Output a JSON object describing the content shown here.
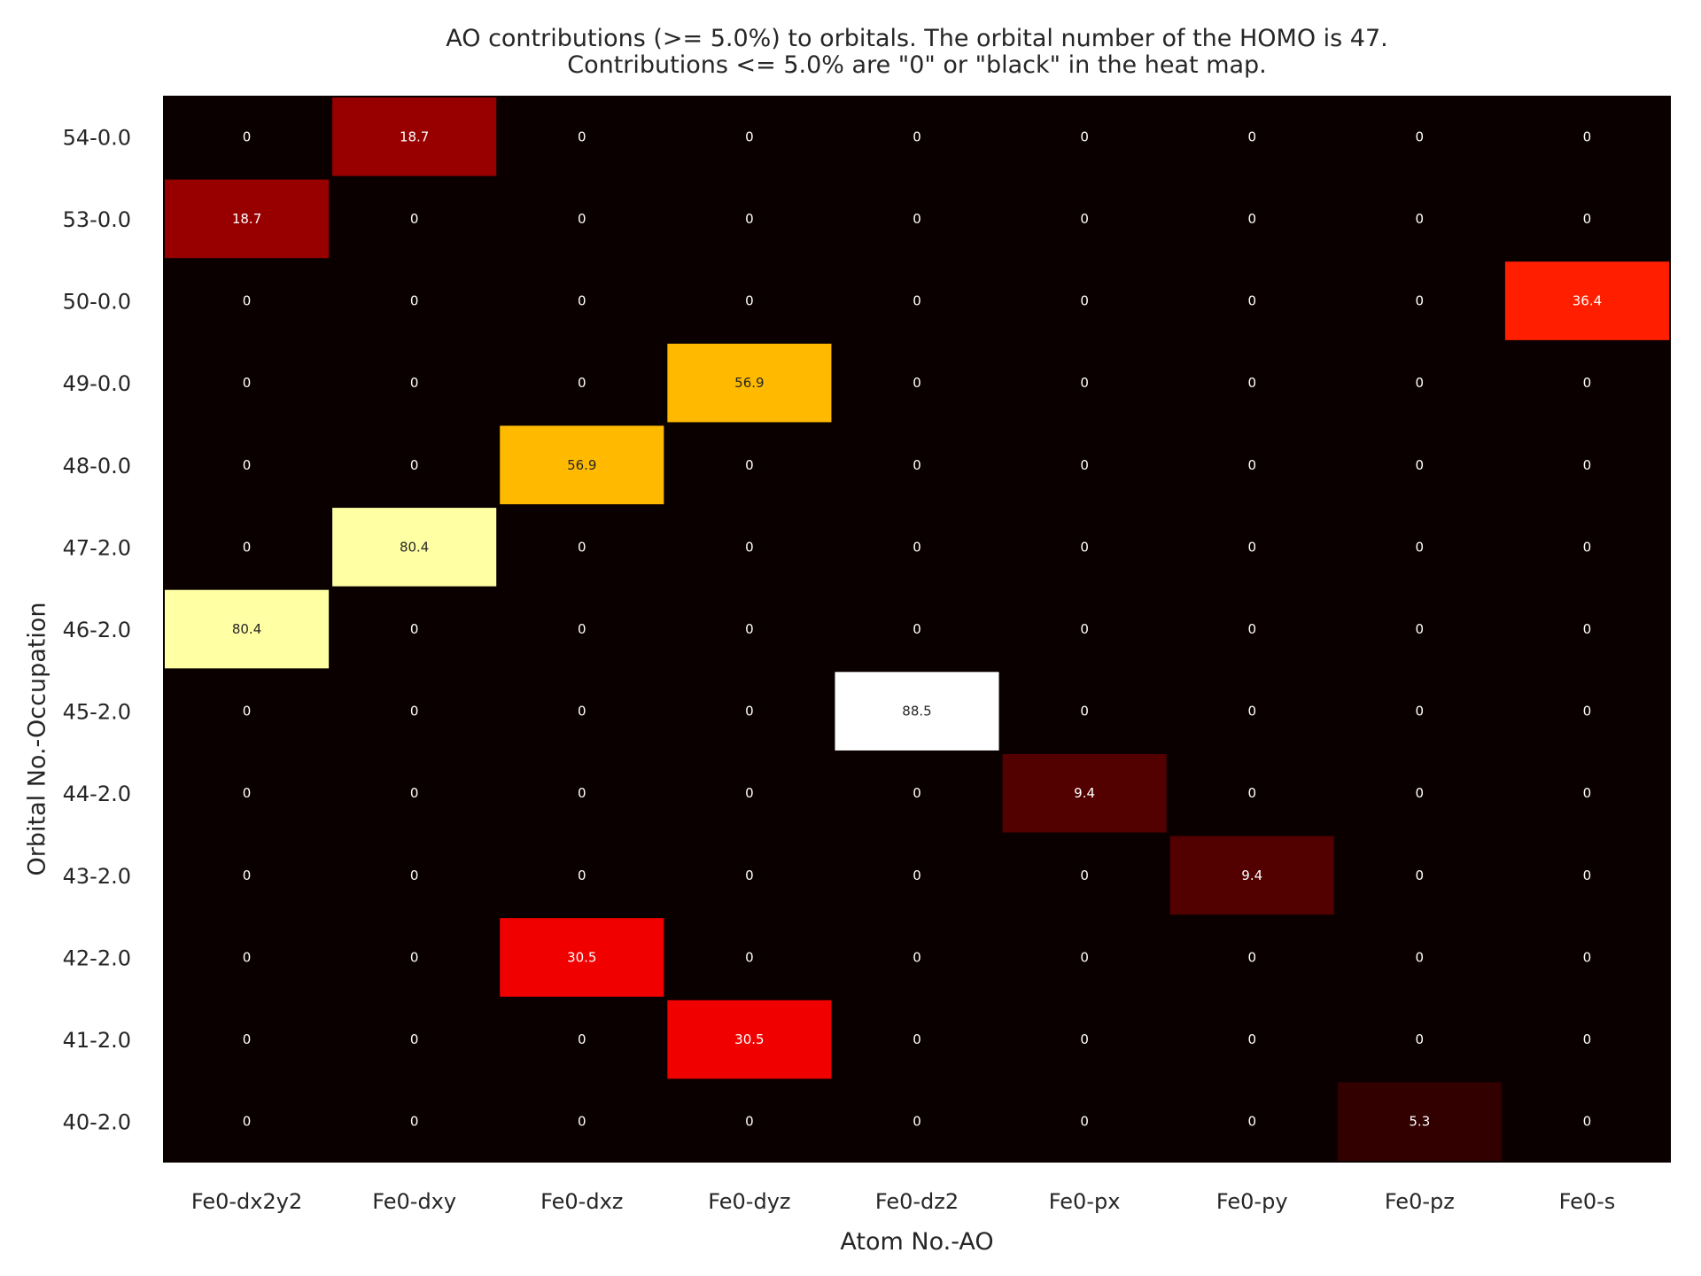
{
  "chart_data": {
    "type": "heatmap",
    "title": "AO contributions (>= 5.0%) to orbitals. The orbital number of the HOMO is 47.",
    "subtitle": "Contributions <= 5.0% are \"0\" or \"black\" in the heat map.",
    "xlabel": "Atom No.-AO",
    "ylabel": "Orbital No.-Occupation",
    "x_categories": [
      "Fe0-dx2y2",
      "Fe0-dxy",
      "Fe0-dxz",
      "Fe0-dyz",
      "Fe0-dz2",
      "Fe0-px",
      "Fe0-py",
      "Fe0-pz",
      "Fe0-s"
    ],
    "y_categories": [
      "54-0.0",
      "53-0.0",
      "50-0.0",
      "49-0.0",
      "48-0.0",
      "47-2.0",
      "46-2.0",
      "45-2.0",
      "44-2.0",
      "43-2.0",
      "42-2.0",
      "41-2.0",
      "40-2.0"
    ],
    "values": [
      [
        0,
        18.7,
        0,
        0,
        0,
        0,
        0,
        0,
        0
      ],
      [
        18.7,
        0,
        0,
        0,
        0,
        0,
        0,
        0,
        0
      ],
      [
        0,
        0,
        0,
        0,
        0,
        0,
        0,
        0,
        36.4
      ],
      [
        0,
        0,
        0,
        56.9,
        0,
        0,
        0,
        0,
        0
      ],
      [
        0,
        0,
        56.9,
        0,
        0,
        0,
        0,
        0,
        0
      ],
      [
        0,
        80.4,
        0,
        0,
        0,
        0,
        0,
        0,
        0
      ],
      [
        80.4,
        0,
        0,
        0,
        0,
        0,
        0,
        0,
        0
      ],
      [
        0,
        0,
        0,
        0,
        88.5,
        0,
        0,
        0,
        0
      ],
      [
        0,
        0,
        0,
        0,
        0,
        9.4,
        0,
        0,
        0
      ],
      [
        0,
        0,
        0,
        0,
        0,
        0,
        9.4,
        0,
        0
      ],
      [
        0,
        0,
        30.5,
        0,
        0,
        0,
        0,
        0,
        0
      ],
      [
        0,
        0,
        0,
        30.5,
        0,
        0,
        0,
        0,
        0
      ],
      [
        0,
        0,
        0,
        0,
        0,
        0,
        0,
        5.3,
        0
      ]
    ],
    "colormap": "hot",
    "value_range": [
      0,
      88.5
    ],
    "annotations": true,
    "colorbar": false
  }
}
